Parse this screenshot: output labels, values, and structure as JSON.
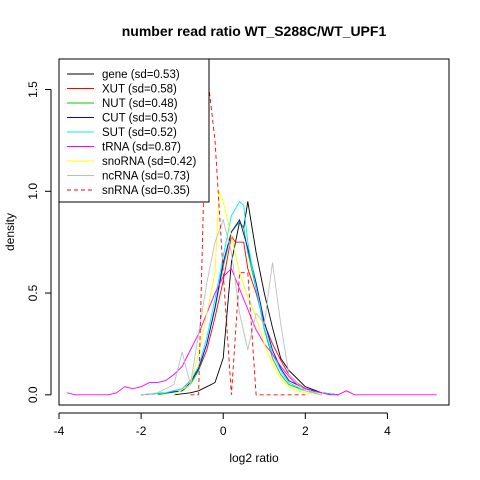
{
  "chart_data": {
    "type": "line",
    "title": "number read ratio WT_S288C/WT_UPF1",
    "xlabel": "log2 ratio",
    "ylabel": "density",
    "xlim": [
      -4.0,
      5.5
    ],
    "ylim": [
      -0.05,
      1.65
    ],
    "x_ticks": [
      -4,
      -2,
      0,
      2,
      4
    ],
    "x_tick_labels": [
      "-4",
      "-2",
      "0",
      "2",
      "4"
    ],
    "y_ticks": [
      0.0,
      0.5,
      1.0,
      1.5
    ],
    "y_tick_labels": [
      "0.0",
      "0.5",
      "1.0",
      "1.5"
    ],
    "grid": false,
    "legend_position": "top-left",
    "series": [
      {
        "name": "gene (sd=0.53)",
        "color": "#000000",
        "dash": "solid",
        "x": [
          -1.2,
          -0.8,
          -0.6,
          -0.4,
          -0.2,
          0.0,
          0.2,
          0.4,
          0.5,
          0.6,
          0.8,
          1.0,
          1.2,
          1.4,
          1.6,
          1.8,
          2.0,
          2.4,
          2.8
        ],
        "y": [
          0.0,
          0.01,
          0.02,
          0.04,
          0.06,
          0.18,
          0.65,
          0.85,
          0.82,
          0.95,
          0.7,
          0.5,
          0.33,
          0.18,
          0.12,
          0.08,
          0.04,
          0.01,
          0.0
        ]
      },
      {
        "name": "XUT (sd=0.58)",
        "color": "#ff0000",
        "dash": "solid",
        "x": [
          -2.0,
          -1.4,
          -1.0,
          -0.8,
          -0.6,
          -0.4,
          -0.2,
          0.0,
          0.2,
          0.3,
          0.5,
          0.6,
          0.8,
          1.0,
          1.2,
          1.4,
          1.6,
          1.8,
          2.0,
          2.4,
          2.8
        ],
        "y": [
          0.0,
          0.01,
          0.03,
          0.07,
          0.12,
          0.22,
          0.38,
          0.56,
          0.78,
          0.75,
          0.75,
          0.62,
          0.5,
          0.35,
          0.25,
          0.17,
          0.1,
          0.06,
          0.03,
          0.01,
          0.0
        ]
      },
      {
        "name": "NUT (sd=0.48)",
        "color": "#00cc00",
        "dash": "solid",
        "x": [
          -1.6,
          -1.0,
          -0.8,
          -0.6,
          -0.4,
          -0.2,
          0.0,
          0.2,
          0.4,
          0.5,
          0.6,
          0.8,
          1.0,
          1.2,
          1.4,
          1.6,
          2.0,
          2.4
        ],
        "y": [
          0.0,
          0.02,
          0.05,
          0.12,
          0.25,
          0.42,
          0.63,
          0.8,
          0.85,
          0.82,
          0.7,
          0.52,
          0.32,
          0.18,
          0.1,
          0.05,
          0.02,
          0.0
        ]
      },
      {
        "name": "CUT (sd=0.53)",
        "color": "#0000ff",
        "dash": "solid",
        "x": [
          -2.0,
          -1.4,
          -1.0,
          -0.8,
          -0.6,
          -0.4,
          -0.2,
          0.0,
          0.2,
          0.4,
          0.6,
          0.8,
          1.0,
          1.2,
          1.4,
          1.6,
          2.0,
          2.4,
          2.8
        ],
        "y": [
          0.0,
          0.01,
          0.02,
          0.06,
          0.13,
          0.25,
          0.43,
          0.65,
          0.8,
          0.86,
          0.72,
          0.55,
          0.36,
          0.22,
          0.13,
          0.07,
          0.03,
          0.01,
          0.0
        ]
      },
      {
        "name": "SUT (sd=0.52)",
        "color": "#00eeee",
        "dash": "solid",
        "x": [
          -2.0,
          -1.4,
          -1.0,
          -0.8,
          -0.6,
          -0.4,
          -0.2,
          0.0,
          0.2,
          0.4,
          0.5,
          0.6,
          0.8,
          1.0,
          1.2,
          1.4,
          1.6,
          2.0,
          2.4,
          2.8
        ],
        "y": [
          0.0,
          0.01,
          0.03,
          0.07,
          0.14,
          0.28,
          0.47,
          0.68,
          0.88,
          0.95,
          0.93,
          0.75,
          0.52,
          0.33,
          0.2,
          0.12,
          0.06,
          0.02,
          0.01,
          0.0
        ]
      },
      {
        "name": "tRNA (sd=0.87)",
        "color": "#ff00ff",
        "dash": "solid",
        "x": [
          -3.8,
          -3.6,
          -3.2,
          -2.8,
          -2.6,
          -2.4,
          -2.2,
          -2.0,
          -1.8,
          -1.6,
          -1.4,
          -1.2,
          -1.0,
          -0.8,
          -0.6,
          -0.4,
          -0.2,
          0.0,
          0.2,
          0.4,
          0.6,
          0.8,
          1.0,
          1.2,
          1.4,
          1.6,
          1.8,
          2.0,
          2.2,
          2.4,
          2.6,
          2.8,
          3.0,
          3.2,
          3.4,
          3.6,
          5.2
        ],
        "y": [
          0.01,
          0.0,
          0.0,
          0.0,
          0.01,
          0.04,
          0.03,
          0.04,
          0.06,
          0.06,
          0.07,
          0.1,
          0.14,
          0.22,
          0.3,
          0.4,
          0.5,
          0.58,
          0.62,
          0.52,
          0.42,
          0.32,
          0.25,
          0.2,
          0.14,
          0.09,
          0.05,
          0.03,
          0.02,
          0.01,
          0.0,
          0.0,
          0.02,
          0.0,
          0.0,
          0.0,
          0.0
        ]
      },
      {
        "name": "snoRNA (sd=0.42)",
        "color": "#ffff00",
        "dash": "solid",
        "x": [
          -1.2,
          -0.8,
          -0.6,
          -0.4,
          -0.2,
          -0.1,
          0.0,
          0.2,
          0.4,
          0.6,
          0.8,
          1.0,
          1.2,
          1.4,
          1.6,
          1.8,
          2.0,
          2.4
        ],
        "y": [
          0.0,
          0.05,
          0.2,
          0.4,
          0.6,
          1.0,
          0.95,
          0.78,
          0.6,
          0.48,
          0.38,
          0.25,
          0.15,
          0.08,
          0.04,
          0.02,
          0.01,
          0.0
        ]
      },
      {
        "name": "ncRNA (sd=0.73)",
        "color": "#bebebe",
        "dash": "solid",
        "x": [
          -2.0,
          -1.6,
          -1.2,
          -1.0,
          -0.8,
          -0.6,
          -0.4,
          -0.2,
          0.0,
          0.2,
          0.4,
          0.6,
          0.8,
          1.0,
          1.2,
          1.4,
          1.6,
          2.0,
          2.4
        ],
        "y": [
          0.0,
          0.01,
          0.05,
          0.21,
          0.05,
          0.3,
          0.55,
          0.75,
          0.86,
          0.7,
          0.4,
          0.22,
          0.4,
          0.35,
          0.65,
          0.35,
          0.1,
          0.02,
          0.0
        ]
      },
      {
        "name": "snRNA (sd=0.35)",
        "color": "#ff0000",
        "dash": "dashed",
        "x": [
          -0.8,
          -0.6,
          -0.4,
          -0.2,
          0.0,
          0.2,
          0.4,
          0.6,
          0.8,
          1.2,
          2.0
        ],
        "y": [
          0.0,
          0.0,
          1.6,
          1.25,
          0.6,
          0.0,
          0.6,
          0.6,
          0.0,
          0.0,
          0.0
        ]
      }
    ]
  }
}
